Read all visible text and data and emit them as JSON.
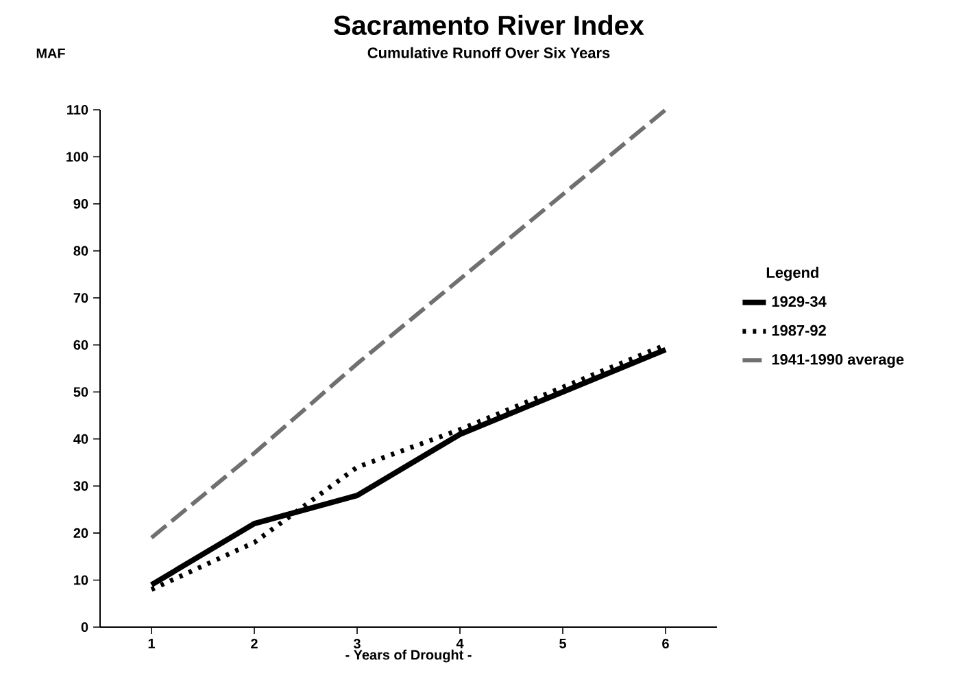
{
  "chart_data": {
    "type": "line",
    "title": "Sacramento River Index",
    "subtitle": "Cumulative Runoff Over Six Years",
    "xlabel": "- Years of Drought -",
    "ylabel": "MAF",
    "legend_title": "Legend",
    "x": [
      1,
      2,
      3,
      4,
      5,
      6
    ],
    "series": [
      {
        "name": "1929-34",
        "color": "#000000",
        "line_style": "solid",
        "values": [
          9,
          22,
          28,
          41,
          50,
          59
        ]
      },
      {
        "name": "1987-92",
        "color": "#000000",
        "line_style": "dotted",
        "values": [
          8,
          18,
          34,
          42,
          51,
          60
        ]
      },
      {
        "name": "1941-1990 average",
        "color": "#707070",
        "line_style": "dashed",
        "values": [
          19,
          37,
          56,
          74,
          92,
          110
        ]
      }
    ],
    "xlim": [
      0.5,
      6.5
    ],
    "xticks": [
      1,
      2,
      3,
      4,
      5,
      6
    ],
    "ylim": [
      0,
      110
    ],
    "yticks": [
      0,
      10,
      20,
      30,
      40,
      50,
      60,
      70,
      80,
      90,
      100,
      110
    ],
    "grid": false,
    "legend": "right",
    "marker": "none"
  }
}
